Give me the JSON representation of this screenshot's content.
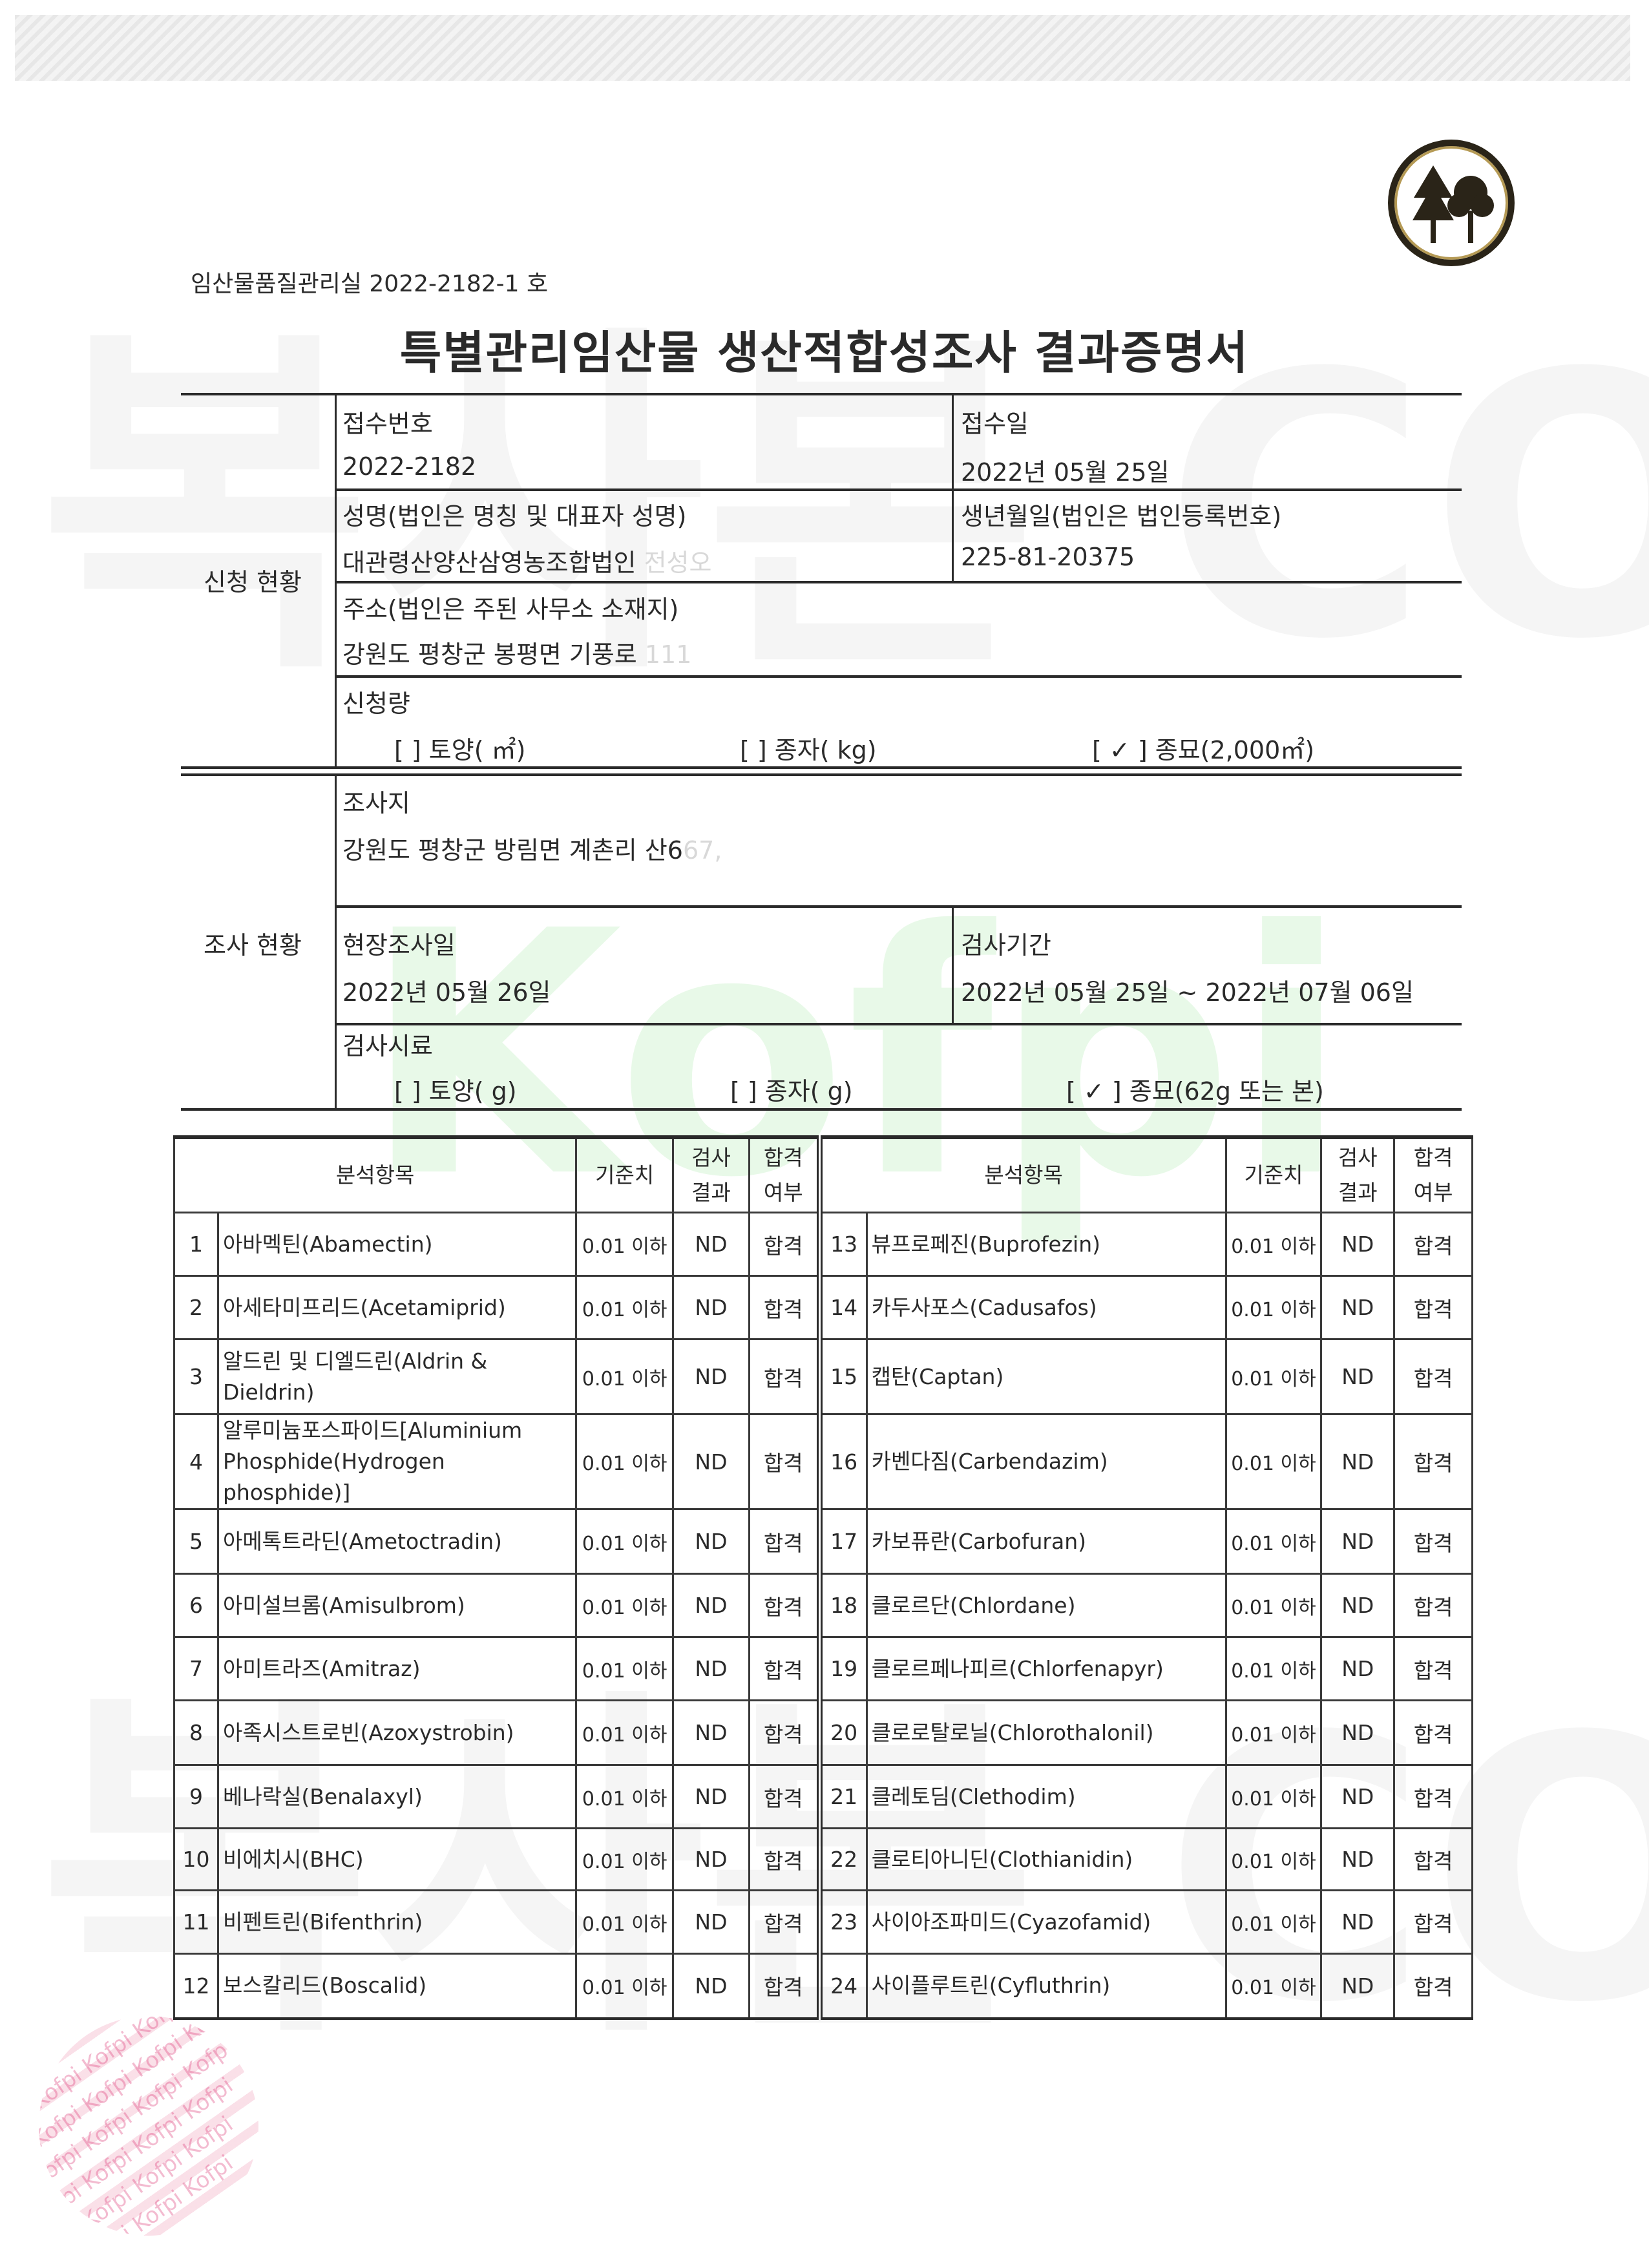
{
  "document_number": "임산물품질관리실  2022-2182-1 호",
  "title": "특별관리임산물  생산적합성조사  결과증명서",
  "application": {
    "section_label": "신청 현황",
    "receipt_no_label": "접수번호",
    "receipt_no": "2022-2182",
    "receipt_date_label": "접수일",
    "receipt_date": "2022년  05월  25일",
    "name_label": "성명(법인은  명칭  및  대표자  성명)",
    "name": "대관령산양산삼영농조합법인",
    "name_faint": "전성오",
    "reg_label": "생년월일(법인은  법인등록번호)",
    "reg_no": "225-81-20375",
    "address_label": "주소(법인은  주된  사무소  소재지)",
    "address": "강원도  평창군  봉평면  기풍로",
    "address_faint": "111",
    "amount_label": "신청량",
    "amount_options": [
      "[   ] 토양(         ㎡)",
      "[   ] 종자(         kg)",
      "[ ✓ ] 종묘(2,000㎡)"
    ]
  },
  "survey": {
    "section_label": "조사 현황",
    "site_label": "조사지",
    "site": "강원도  평창군  방림면  계촌리  산6",
    "site_faint": "67,",
    "field_date_label": "현장조사일",
    "field_date": "2022년  05월  26일",
    "period_label": "검사기간",
    "period": "2022년  05월  25일  ~ 2022년  07월  06일",
    "sample_label": "검사시료",
    "sample_options": [
      "[   ] 토양(         g)",
      "[   ] 종자(         g)",
      "[ ✓ ] 종묘(62g  또는  본)"
    ]
  },
  "results": {
    "headers": {
      "item": "분석항목",
      "standard": "기준치",
      "result": "검사\n결과",
      "pass": "합격\n여부"
    },
    "rows": [
      {
        "no": "1",
        "name": "아바멕틴(Abamectin)",
        "standard": "0.01 이하",
        "result": "ND",
        "pass": "합격"
      },
      {
        "no": "2",
        "name": "아세타미프리드(Acetamiprid)",
        "standard": "0.01 이하",
        "result": "ND",
        "pass": "합격"
      },
      {
        "no": "3",
        "name": "알드린 및 디엘드린(Aldrin & Dieldrin)",
        "standard": "0.01 이하",
        "result": "ND",
        "pass": "합격"
      },
      {
        "no": "4",
        "name": "알루미늄포스파이드[Aluminium Phosphide(Hydrogen phosphide)]",
        "standard": "0.01 이하",
        "result": "ND",
        "pass": "합격"
      },
      {
        "no": "5",
        "name": "아메톡트라딘(Ametoctradin)",
        "standard": "0.01 이하",
        "result": "ND",
        "pass": "합격"
      },
      {
        "no": "6",
        "name": "아미설브롬(Amisulbrom)",
        "standard": "0.01 이하",
        "result": "ND",
        "pass": "합격"
      },
      {
        "no": "7",
        "name": "아미트라즈(Amitraz)",
        "standard": "0.01 이하",
        "result": "ND",
        "pass": "합격"
      },
      {
        "no": "8",
        "name": "아족시스트로빈(Azoxystrobin)",
        "standard": "0.01 이하",
        "result": "ND",
        "pass": "합격"
      },
      {
        "no": "9",
        "name": "베나락실(Benalaxyl)",
        "standard": "0.01 이하",
        "result": "ND",
        "pass": "합격"
      },
      {
        "no": "10",
        "name": "비에치시(BHC)",
        "standard": "0.01 이하",
        "result": "ND",
        "pass": "합격"
      },
      {
        "no": "11",
        "name": "비펜트린(Bifenthrin)",
        "standard": "0.01 이하",
        "result": "ND",
        "pass": "합격"
      },
      {
        "no": "12",
        "name": "보스칼리드(Boscalid)",
        "standard": "0.01 이하",
        "result": "ND",
        "pass": "합격"
      },
      {
        "no": "13",
        "name": "뷰프로페진(Buprofezin)",
        "standard": "0.01 이하",
        "result": "ND",
        "pass": "합격"
      },
      {
        "no": "14",
        "name": "카두사포스(Cadusafos)",
        "standard": "0.01 이하",
        "result": "ND",
        "pass": "합격"
      },
      {
        "no": "15",
        "name": "캡탄(Captan)",
        "standard": "0.01 이하",
        "result": "ND",
        "pass": "합격"
      },
      {
        "no": "16",
        "name": "카벤다짐(Carbendazim)",
        "standard": "0.01 이하",
        "result": "ND",
        "pass": "합격"
      },
      {
        "no": "17",
        "name": "카보퓨란(Carbofuran)",
        "standard": "0.01 이하",
        "result": "ND",
        "pass": "합격"
      },
      {
        "no": "18",
        "name": "클로르단(Chlordane)",
        "standard": "0.01 이하",
        "result": "ND",
        "pass": "합격"
      },
      {
        "no": "19",
        "name": "클로르페나피르(Chlorfenapyr)",
        "standard": "0.01 이하",
        "result": "ND",
        "pass": "합격"
      },
      {
        "no": "20",
        "name": "클로로탈로닐(Chlorothalonil)",
        "standard": "0.01 이하",
        "result": "ND",
        "pass": "합격"
      },
      {
        "no": "21",
        "name": "클레토딤(Clethodim)",
        "standard": "0.01 이하",
        "result": "ND",
        "pass": "합격"
      },
      {
        "no": "22",
        "name": "클로티아니딘(Clothianidin)",
        "standard": "0.01 이하",
        "result": "ND",
        "pass": "합격"
      },
      {
        "no": "23",
        "name": "사이아조파미드(Cyazofamid)",
        "standard": "0.01 이하",
        "result": "ND",
        "pass": "합격"
      },
      {
        "no": "24",
        "name": "사이플루트린(Cyfluthrin)",
        "standard": "0.01 이하",
        "result": "ND",
        "pass": "합격"
      }
    ]
  },
  "watermarks": {
    "copy": "복사본 COPY",
    "brand": "Kofpi",
    "seal": "Kofpi Kofpi Kofpi"
  },
  "colors": {
    "text": "#2a2a2a",
    "watermark_green": "#4ad04a",
    "seal_pink": "#dc3c78",
    "logo_gold": "#b59a55"
  }
}
